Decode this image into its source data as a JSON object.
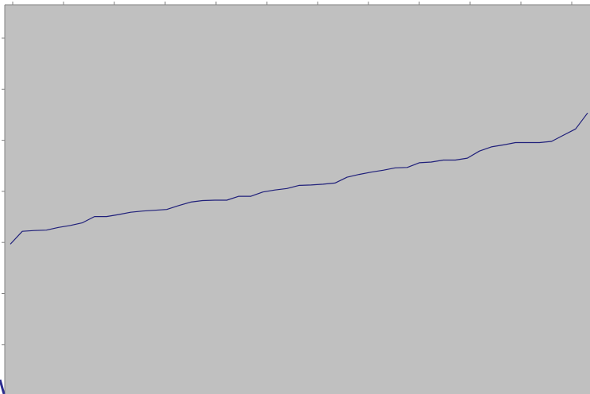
{
  "colors": {
    "page_background": "#ffffff",
    "plot_background": "#c0c0c0",
    "axis": "#808080",
    "series": "#1f1f7a"
  },
  "chart_data": {
    "type": "line",
    "title": "",
    "xlabel": "",
    "ylabel": "",
    "legend": "none",
    "grid": false,
    "x_tick_count": 12,
    "y_tick_count": 8,
    "xlim": [
      0,
      49
    ],
    "ylim": [
      0,
      100
    ],
    "series": [
      {
        "values": [
          38.5,
          41.8,
          42.0,
          42.1,
          42.8,
          43.3,
          44.0,
          45.6,
          45.6,
          46.1,
          46.7,
          47.0,
          47.2,
          47.4,
          48.4,
          49.3,
          49.7,
          49.8,
          49.8,
          50.8,
          50.8,
          51.9,
          52.4,
          52.8,
          53.6,
          53.7,
          53.9,
          54.2,
          55.7,
          56.4,
          57.0,
          57.5,
          58.1,
          58.2,
          59.4,
          59.6,
          60.1,
          60.1,
          60.6,
          62.4,
          63.5,
          64.0,
          64.6,
          64.6,
          64.6,
          64.9,
          66.5,
          68.1,
          72.2
        ]
      }
    ]
  }
}
